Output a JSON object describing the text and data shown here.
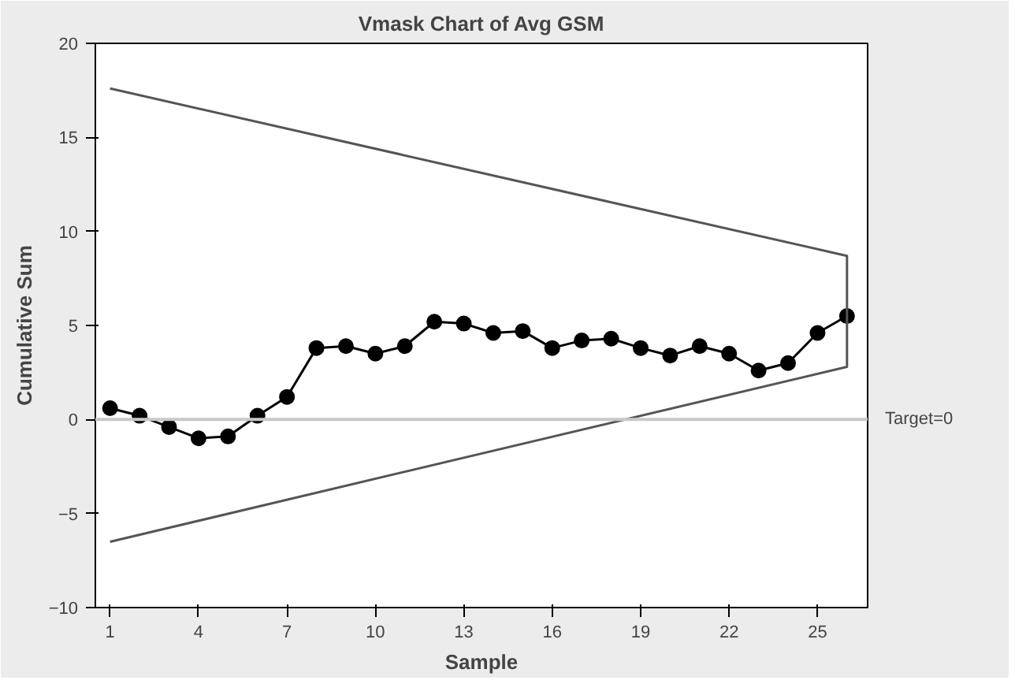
{
  "chart_data": {
    "type": "line",
    "title": "Vmask Chart of Avg GSM",
    "xlabel": "Sample",
    "ylabel": "Cumulative Sum",
    "xlim": [
      0.5,
      26.7
    ],
    "xticks": [
      1,
      4,
      7,
      10,
      13,
      16,
      19,
      22,
      25
    ],
    "ylim": [
      -10,
      20
    ],
    "yticks": [
      -10,
      -5,
      0,
      5,
      10,
      15,
      20
    ],
    "grid": false,
    "series": [
      {
        "color": "#000000",
        "marker": "circle",
        "x": [
          1,
          2,
          3,
          4,
          5,
          6,
          7,
          8,
          9,
          10,
          11,
          12,
          13,
          14,
          15,
          16,
          17,
          18,
          19,
          20,
          21,
          22,
          23,
          24,
          25,
          26
        ],
        "values": [
          0.6,
          0.2,
          -0.4,
          -1.0,
          -0.9,
          0.2,
          1.2,
          3.8,
          3.9,
          3.5,
          3.9,
          5.2,
          5.1,
          4.6,
          4.7,
          3.8,
          4.2,
          4.3,
          3.8,
          3.4,
          3.9,
          3.5,
          2.6,
          3.0,
          4.6,
          5.5
        ]
      },
      {
        "color": "#555555",
        "marker": "none",
        "x": [
          1,
          26,
          26,
          1
        ],
        "values": [
          17.6,
          8.7,
          2.8,
          -6.5
        ]
      }
    ],
    "ref_lines": [
      {
        "axis": "y",
        "value": 0,
        "label": "Target=0",
        "color": "#c8c8c8"
      }
    ]
  }
}
